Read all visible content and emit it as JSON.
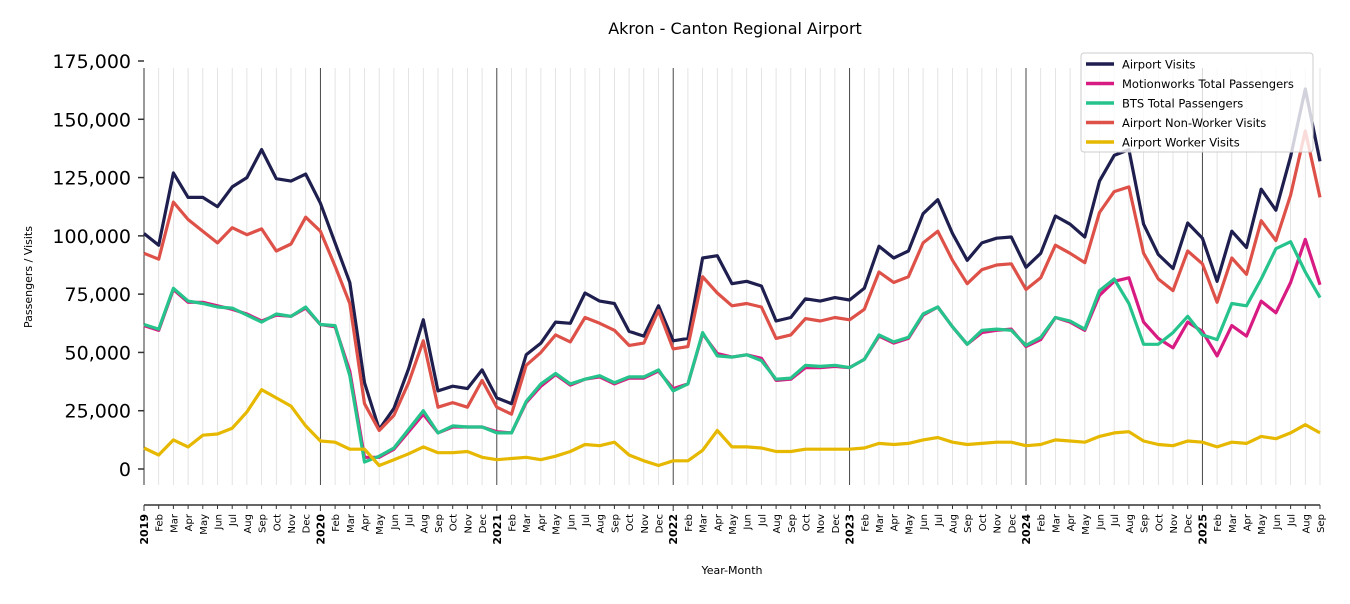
{
  "chart_data": {
    "type": "line",
    "title": "Akron - Canton Regional Airport",
    "xlabel": "Year-Month",
    "ylabel": "Passengers / Visits",
    "ylim": [
      -7000,
      175000
    ],
    "yticks": [
      0,
      25000,
      50000,
      75000,
      100000,
      125000,
      150000,
      175000
    ],
    "ytick_labels": [
      "0",
      "25,000",
      "50,000",
      "75,000",
      "100,000",
      "125,000",
      "150,000",
      "175,000"
    ],
    "start": "2019-01",
    "end": "2025-09",
    "month_labels": [
      "Jan",
      "Feb",
      "Mar",
      "Apr",
      "May",
      "Jun",
      "Jul",
      "Aug",
      "Sep",
      "Oct",
      "Nov",
      "Dec"
    ],
    "years": [
      "2019",
      "2020",
      "2021",
      "2022",
      "2023",
      "2024",
      "2025"
    ],
    "legend_position": "top-right",
    "grid": "vertical monthly, year separators",
    "series": [
      {
        "name": "Airport Visits",
        "color": "#1f1f4f",
        "values": [
          101000,
          96000,
          127000,
          116500,
          116500,
          112500,
          121000,
          125000,
          137000,
          124500,
          123500,
          126500,
          114000,
          97000,
          80000,
          37000,
          17000,
          26000,
          43000,
          64000,
          33500,
          35500,
          34500,
          42500,
          30500,
          28000,
          49000,
          54000,
          63000,
          62500,
          75500,
          72000,
          71000,
          59000,
          57000,
          70000,
          55000,
          56000,
          90500,
          91500,
          79500,
          80500,
          78500,
          63500,
          65000,
          73000,
          72000,
          73500,
          72500,
          77500,
          95500,
          90500,
          93500,
          109500,
          115500,
          101000,
          89500,
          97000,
          99000,
          99500,
          86500,
          92500,
          108500,
          105000,
          99500,
          123500,
          134500,
          137000,
          105000,
          92000,
          86000,
          105500,
          99000,
          80500,
          102000,
          95000,
          120000,
          111000,
          134000,
          163000,
          132000
        ]
      },
      {
        "name": "Motionworks Total Passengers",
        "color": "#d81b82",
        "values": [
          61500,
          59500,
          77000,
          71500,
          71500,
          70000,
          68500,
          66500,
          63500,
          66000,
          65500,
          69000,
          62000,
          61000,
          42000,
          5000,
          5000,
          8500,
          16000,
          23500,
          15500,
          18000,
          18000,
          18000,
          16000,
          15500,
          28500,
          35500,
          40500,
          36000,
          38500,
          39500,
          36500,
          39000,
          39000,
          42000,
          34500,
          36500,
          58000,
          49500,
          48000,
          49000,
          47500,
          38000,
          38500,
          43500,
          43500,
          44000,
          43500,
          47000,
          57000,
          54000,
          56000,
          66000,
          69500,
          61000,
          53500,
          58500,
          59500,
          60000,
          52500,
          55500,
          65000,
          63000,
          59500,
          74500,
          80500,
          82000,
          63000,
          56000,
          52000,
          63000,
          59000,
          48500,
          61500,
          57000,
          72000,
          67000,
          80000,
          98500,
          79000
        ]
      },
      {
        "name": "BTS Total Passengers",
        "color": "#26c48c",
        "values": [
          62000,
          60000,
          77500,
          72000,
          71000,
          69500,
          69000,
          66000,
          63000,
          66500,
          65500,
          69500,
          62000,
          61500,
          40000,
          3000,
          5500,
          9000,
          17000,
          25000,
          15500,
          18500,
          18000,
          18000,
          15500,
          15500,
          29000,
          36500,
          41000,
          36500,
          38500,
          40000,
          37000,
          39500,
          39500,
          42500,
          33500,
          36500,
          58500,
          48500,
          48000,
          49000,
          46500,
          38500,
          39000,
          44500,
          44000,
          44500,
          43500,
          47000,
          57500,
          54500,
          56500,
          66500,
          69500,
          61000,
          53500,
          59500,
          60000,
          59500,
          53000,
          56500,
          65000,
          63500,
          60000,
          76500,
          81500,
          71000,
          53500,
          53500,
          58500,
          65500,
          57500,
          55500,
          71000,
          70000,
          81500,
          94500,
          97500,
          84500,
          73500
        ]
      },
      {
        "name": "Airport Non-Worker Visits",
        "color": "#de5148",
        "values": [
          92500,
          90000,
          114500,
          107000,
          102000,
          97000,
          103500,
          100500,
          103000,
          93500,
          96500,
          108000,
          102000,
          87000,
          71000,
          28000,
          16500,
          23000,
          37000,
          55000,
          26500,
          28500,
          26500,
          38000,
          26500,
          23500,
          44500,
          50000,
          57500,
          54500,
          65000,
          62500,
          59500,
          53000,
          54000,
          68000,
          51500,
          52500,
          82500,
          75500,
          70000,
          71000,
          69500,
          56000,
          57500,
          64500,
          63500,
          65000,
          64000,
          68500,
          84500,
          80000,
          82500,
          97000,
          102000,
          89500,
          79500,
          85500,
          87500,
          88000,
          77000,
          82000,
          96000,
          92500,
          88500,
          110000,
          119000,
          121000,
          92500,
          81500,
          76500,
          93500,
          88000,
          71500,
          90500,
          83500,
          106500,
          98000,
          117500,
          145000,
          116500
        ]
      },
      {
        "name": "Airport Worker Visits",
        "color": "#e6b800",
        "values": [
          9000,
          6000,
          12500,
          9500,
          14500,
          15000,
          17500,
          24500,
          34000,
          30500,
          27000,
          18500,
          12000,
          11500,
          8500,
          8500,
          1500,
          4000,
          6500,
          9500,
          7000,
          7000,
          7500,
          5000,
          4000,
          4500,
          5000,
          4000,
          5500,
          7500,
          10500,
          10000,
          11500,
          6000,
          3500,
          1500,
          3500,
          3500,
          8000,
          16500,
          9500,
          9500,
          9000,
          7500,
          7500,
          8500,
          8500,
          8500,
          8500,
          9000,
          11000,
          10500,
          11000,
          12500,
          13500,
          11500,
          10500,
          11000,
          11500,
          11500,
          10000,
          10500,
          12500,
          12000,
          11500,
          14000,
          15500,
          16000,
          12000,
          10500,
          10000,
          12000,
          11500,
          9500,
          11500,
          11000,
          14000,
          13000,
          15500,
          19000,
          15500
        ]
      }
    ]
  }
}
